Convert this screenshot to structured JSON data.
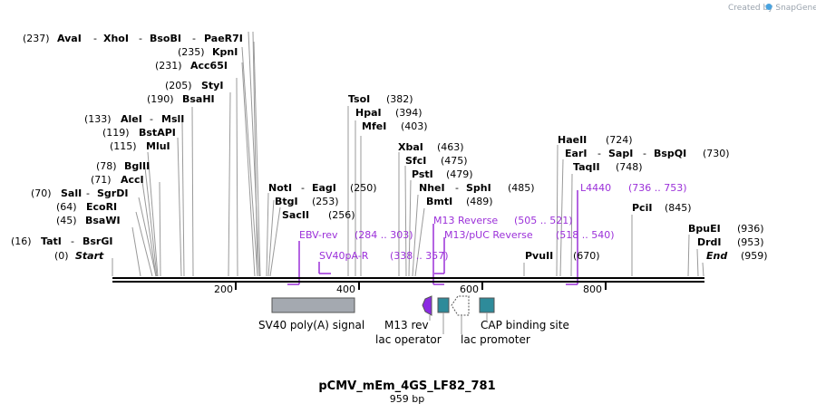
{
  "watermark": "Created by SnapGene",
  "plasmid": {
    "name": "pCMV_mEm_4GS_LF82_781",
    "length_label": "959 bp",
    "length_bp": 959
  },
  "ruler": {
    "ticks": [
      "200",
      "400",
      "600",
      "800"
    ]
  },
  "sites": [
    {
      "num": "(0)",
      "name": "Start",
      "italic": true
    },
    {
      "num": "(16)",
      "name": "TatI",
      "extra": "BsrGI"
    },
    {
      "num": "(45)",
      "name": "BsaWI"
    },
    {
      "num": "(64)",
      "name": "EcoRI"
    },
    {
      "num": "(70)",
      "name": "SalI",
      "extra": "SgrDI"
    },
    {
      "num": "(71)",
      "name": "AccI"
    },
    {
      "num": "(78)",
      "name": "BglII"
    },
    {
      "num": "(115)",
      "name": "MluI"
    },
    {
      "num": "(119)",
      "name": "BstAPI"
    },
    {
      "num": "(133)",
      "name": "AleI",
      "extra": "MslI"
    },
    {
      "num": "(190)",
      "name": "BsaHI"
    },
    {
      "num": "(205)",
      "name": "StyI"
    },
    {
      "num": "(231)",
      "name": "Acc65I"
    },
    {
      "num": "(235)",
      "name": "KpnI"
    },
    {
      "num": "(237)",
      "name": "AvaI",
      "extra": "XhoI",
      "extra2": "BsoBI",
      "extra3": "PaeR7I"
    },
    {
      "name": "NotI",
      "extra": "EagI",
      "num": "(250)"
    },
    {
      "name": "BtgI",
      "num": "(253)"
    },
    {
      "name": "SacII",
      "num": "(256)"
    },
    {
      "name": "TsoI",
      "num": "(382)"
    },
    {
      "name": "HpaI",
      "num": "(394)"
    },
    {
      "name": "MfeI",
      "num": "(403)"
    },
    {
      "name": "XbaI",
      "num": "(463)"
    },
    {
      "name": "SfcI",
      "num": "(475)"
    },
    {
      "name": "PstI",
      "num": "(479)"
    },
    {
      "name": "NheI",
      "extra": "SphI",
      "num": "(485)"
    },
    {
      "name": "BmtI",
      "num": "(489)"
    },
    {
      "name": "PvuII",
      "num": "(670)"
    },
    {
      "name": "HaeII",
      "num": "(724)"
    },
    {
      "name": "EarI",
      "extra": "SapI",
      "extra2": "BspQI",
      "num": "(730)"
    },
    {
      "name": "TaqII",
      "num": "(748)"
    },
    {
      "name": "PciI",
      "num": "(845)"
    },
    {
      "name": "BpuEI",
      "num": "(936)"
    },
    {
      "name": "DrdI",
      "num": "(953)"
    },
    {
      "name": "End",
      "italic": true,
      "num": "(959)"
    }
  ],
  "primers": [
    {
      "name": "EBV-rev",
      "range": "(284 .. 303)"
    },
    {
      "name": "SV40pA-R",
      "range": "(338 .. 357)"
    },
    {
      "name": "M13 Reverse",
      "range": "(505 .. 521)"
    },
    {
      "name": "M13/pUC Reverse",
      "range": "(518 .. 540)"
    },
    {
      "name": "L4440",
      "range": "(736 .. 753)"
    }
  ],
  "features": [
    {
      "label": "SV40 poly(A) signal",
      "color": "#a4a9b0"
    },
    {
      "label": "M13 rev",
      "color": "#8b2be2"
    },
    {
      "label": "lac operator",
      "color": "#2e8b9a"
    },
    {
      "label": "lac promoter",
      "color": "#ffffff"
    },
    {
      "label": "CAP binding site",
      "color": "#2e8b9a"
    }
  ]
}
